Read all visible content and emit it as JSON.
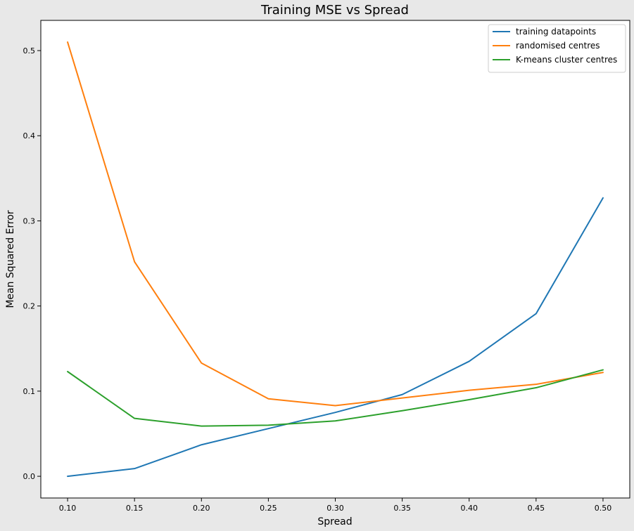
{
  "chart_data": {
    "type": "line",
    "title": "Training MSE vs Spread",
    "xlabel": "Spread",
    "ylabel": "Mean Squared Error",
    "x": [
      0.1,
      0.15,
      0.2,
      0.25,
      0.3,
      0.35,
      0.4,
      0.45,
      0.5
    ],
    "xlim": [
      0.08,
      0.52
    ],
    "ylim": [
      -0.0255,
      0.5355
    ],
    "xticks": [
      "0.10",
      "0.15",
      "0.20",
      "0.25",
      "0.30",
      "0.35",
      "0.40",
      "0.45",
      "0.50"
    ],
    "yticks": [
      "0.0",
      "0.1",
      "0.2",
      "0.3",
      "0.4",
      "0.5"
    ],
    "grid": false,
    "legend_position": "top-right",
    "background_color": "#e8e8e8",
    "plot_background_color": "#ffffff",
    "series": [
      {
        "name": "training datapoints",
        "color": "#1f77b4",
        "values": [
          0.0,
          0.009,
          0.037,
          0.056,
          0.075,
          0.096,
          0.135,
          0.191,
          0.327
        ]
      },
      {
        "name": "randomised centres",
        "color": "#ff7f0e",
        "values": [
          0.51,
          0.252,
          0.133,
          0.091,
          0.083,
          0.092,
          0.101,
          0.108,
          0.122
        ]
      },
      {
        "name": "K-means cluster centres",
        "color": "#2ca02c",
        "values": [
          0.123,
          0.068,
          0.059,
          0.06,
          0.065,
          0.077,
          0.09,
          0.104,
          0.125
        ]
      }
    ]
  }
}
